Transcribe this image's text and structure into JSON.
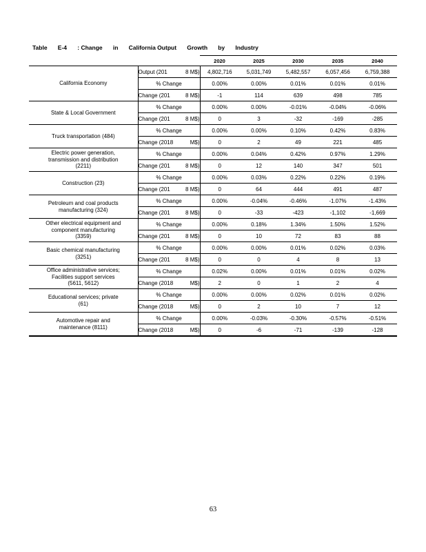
{
  "document": {
    "title_parts": [
      "Table",
      "E-4",
      ": Change",
      "in",
      "California Output",
      "Growth",
      "by",
      "Industry"
    ],
    "title": "Table E-4: Change in California Output Growth by Industry",
    "page_number": "63"
  },
  "table": {
    "years": [
      "2020",
      "2025",
      "2030",
      "2035",
      "2040"
    ],
    "groups": [
      {
        "label": [
          "California Economy"
        ],
        "rows": [
          {
            "measure": [
              "Output (201",
              "8 M$)"
            ],
            "values": [
              "4,802,716",
              "5,031,749",
              "5,482,557",
              "6,057,456",
              "6,759,388"
            ]
          },
          {
            "measure": [
              "% Change",
              ""
            ],
            "values": [
              "0.00%",
              "0.00%",
              "0.01%",
              "0.01%",
              "0.01%"
            ]
          },
          {
            "measure": [
              "Change (201",
              "8 M$)"
            ],
            "values": [
              "-1",
              "114",
              "639",
              "498",
              "785"
            ]
          }
        ]
      },
      {
        "label": [
          "State & Local Government"
        ],
        "rows": [
          {
            "measure": [
              "% Change",
              ""
            ],
            "values": [
              "0.00%",
              "0.00%",
              "-0.01%",
              "-0.04%",
              "-0.06%"
            ]
          },
          {
            "measure": [
              "Change (201",
              "8 M$)"
            ],
            "values": [
              "0",
              "3",
              "-32",
              "-169",
              "-285"
            ]
          }
        ]
      },
      {
        "label": [
          "Truck transportation (484)"
        ],
        "rows": [
          {
            "measure": [
              "% Change",
              ""
            ],
            "values": [
              "0.00%",
              "0.00%",
              "0.10%",
              "0.42%",
              "0.83%"
            ]
          },
          {
            "measure": [
              "Change (2018",
              "M$)"
            ],
            "values": [
              "0",
              "2",
              "49",
              "221",
              "485"
            ]
          }
        ]
      },
      {
        "label": [
          "Electric power generation,",
          "transmission and distribution",
          "(2211)"
        ],
        "rows": [
          {
            "measure": [
              "% Change",
              ""
            ],
            "values": [
              "0.00%",
              "0.04%",
              "0.42%",
              "0.97%",
              "1.29%"
            ]
          },
          {
            "measure": [
              "Change (201",
              "8 M$)"
            ],
            "values": [
              "0",
              "12",
              "140",
              "347",
              "501"
            ]
          }
        ]
      },
      {
        "label": [
          "Construction (23)"
        ],
        "rows": [
          {
            "measure": [
              "% Change",
              ""
            ],
            "values": [
              "0.00%",
              "0.03%",
              "0.22%",
              "0.22%",
              "0.19%"
            ]
          },
          {
            "measure": [
              "Change (201",
              "8 M$)"
            ],
            "values": [
              "0",
              "64",
              "444",
              "491",
              "487"
            ]
          }
        ]
      },
      {
        "label": [
          "Petroleum and coal products",
          "manufacturing (324)"
        ],
        "rows": [
          {
            "measure": [
              "% Change",
              ""
            ],
            "values": [
              "0.00%",
              "-0.04%",
              "-0.46%",
              "-1.07%",
              "-1.43%"
            ]
          },
          {
            "measure": [
              "Change (201",
              "8 M$)"
            ],
            "values": [
              "0",
              "-33",
              "-423",
              "-1,102",
              "-1,669"
            ]
          }
        ]
      },
      {
        "label": [
          "Other electrical equipment and",
          "component manufacturing",
          "(3359)"
        ],
        "rows": [
          {
            "measure": [
              "% Change",
              ""
            ],
            "values": [
              "0.00%",
              "0.18%",
              "1.34%",
              "1.50%",
              "1.52%"
            ]
          },
          {
            "measure": [
              "Change (201",
              "8 M$)"
            ],
            "values": [
              "0",
              "10",
              "72",
              "83",
              "88"
            ]
          }
        ]
      },
      {
        "label": [
          "Basic chemical manufacturing",
          "(3251)"
        ],
        "rows": [
          {
            "measure": [
              "% Change",
              ""
            ],
            "values": [
              "0.00%",
              "0.00%",
              "0.01%",
              "0.02%",
              "0.03%"
            ]
          },
          {
            "measure": [
              "Change (201",
              "8 M$)"
            ],
            "values": [
              "0",
              "0",
              "4",
              "8",
              "13"
            ]
          }
        ]
      },
      {
        "label": [
          "Office administrative services;",
          "Facilities support services",
          "(5611, 5612)"
        ],
        "rows": [
          {
            "measure": [
              "% Change",
              ""
            ],
            "values": [
              "0.02%",
              "0.00%",
              "0.01%",
              "0.01%",
              "0.02%"
            ]
          },
          {
            "measure": [
              "Change (2018",
              "M$)"
            ],
            "values": [
              "2",
              "0",
              "1",
              "2",
              "4"
            ]
          }
        ]
      },
      {
        "label": [
          "Educational services; private",
          "(61)"
        ],
        "rows": [
          {
            "measure": [
              "% Change",
              ""
            ],
            "values": [
              "0.00%",
              "0.00%",
              "0.02%",
              "0.01%",
              "0.02%"
            ]
          },
          {
            "measure": [
              "Change (2018",
              "M$)"
            ],
            "values": [
              "0",
              "2",
              "10",
              "7",
              "12"
            ]
          }
        ]
      },
      {
        "label": [
          "Automotive repair and",
          "maintenance (8111)"
        ],
        "rows": [
          {
            "measure": [
              "% Change",
              ""
            ],
            "values": [
              "0.00%",
              "-0.03%",
              "-0.30%",
              "-0.57%",
              "-0.51%"
            ]
          },
          {
            "measure": [
              "Change (2018",
              "M$)"
            ],
            "values": [
              "0",
              "-6",
              "-71",
              "-139",
              "-128"
            ]
          }
        ]
      }
    ]
  }
}
